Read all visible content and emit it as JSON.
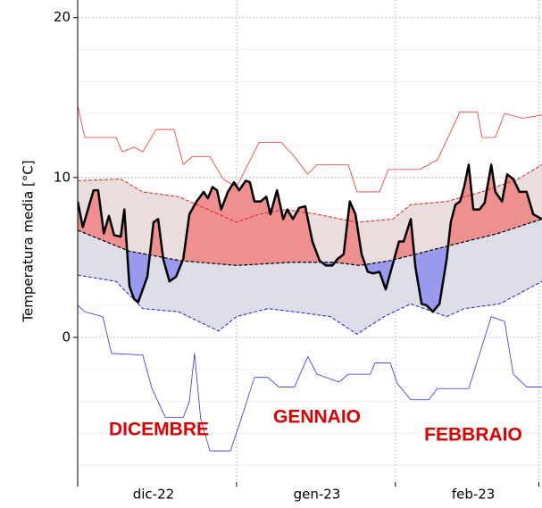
{
  "chart_data": {
    "type": "line",
    "ylabel": "Temperatura media [°C]",
    "xlim": [
      0,
      90.6
    ],
    "ylim": [
      -9.05,
      21.1
    ],
    "yticks": [
      0,
      10,
      20
    ],
    "yminorticks": [
      -8,
      -6,
      -4,
      -2,
      2,
      4,
      6,
      8,
      12,
      14,
      16,
      18
    ],
    "xticks": [
      {
        "value": 14.8,
        "label": "dic-22"
      },
      {
        "value": 46.7,
        "label": "gen-23"
      },
      {
        "value": 77.2,
        "label": "feb-23"
      }
    ],
    "xgrid": [
      0,
      31,
      62,
      90
    ],
    "annotations": [
      "DICEMBRE",
      "GENNAIO",
      "FEBBRAIO"
    ],
    "above_fill": "#ef8f8f",
    "below_fill": "#9999ee",
    "upper_band_fill": "#e9dddd",
    "lower_band_fill": "#dedee9",
    "series": [
      {
        "role": "observed",
        "color": "#000000",
        "style": "solid",
        "width": 2.5,
        "x": [
          0,
          1.0,
          3.1,
          4.0,
          5.1,
          6.1,
          7.1,
          8.4,
          9.1,
          10.1,
          11.0,
          11.8,
          13.6,
          14.8,
          15.7,
          16.7,
          17.9,
          19.2,
          20.6,
          21.8,
          23.2,
          24.6,
          25.4,
          26.3,
          27.2,
          28.0,
          29.3,
          30.5,
          31.5,
          32.8,
          33.6,
          34.5,
          35.7,
          36.8,
          37.6,
          38.9,
          40.1,
          40.9,
          42.0,
          43.2,
          44.4,
          45.8,
          47.2,
          48.4,
          49.7,
          50.7,
          51.9,
          53.1,
          54.2,
          55.4,
          56.6,
          57.7,
          58.9,
          60.1,
          61.5,
          62.7,
          63.6,
          65.0,
          65.9,
          67.1,
          68.1,
          69.3,
          70.6,
          72.0,
          72.8,
          73.7,
          74.6,
          75.4,
          76.3,
          77.2,
          78.4,
          79.4,
          80.7,
          81.5,
          82.8,
          83.8,
          85.0,
          86.2,
          87.6,
          88.9,
          90.6
        ],
        "values": [
          8.5,
          6.9,
          9.2,
          9.2,
          6.5,
          7.6,
          6.4,
          6.3,
          8.0,
          3.2,
          2.4,
          2.2,
          3.8,
          7.2,
          7.4,
          4.9,
          3.5,
          3.8,
          4.9,
          7.7,
          8.5,
          9.1,
          8.7,
          9.4,
          9.2,
          8.0,
          9.1,
          9.7,
          9.2,
          9.8,
          9.7,
          8.5,
          8.5,
          8.8,
          7.7,
          9.2,
          7.4,
          8.0,
          7.4,
          8.1,
          8.2,
          6.0,
          4.8,
          4.5,
          4.5,
          4.9,
          5.2,
          8.5,
          7.7,
          5.2,
          4.1,
          4.0,
          4.1,
          3.0,
          4.6,
          6.0,
          6.0,
          7.4,
          4.4,
          2.1,
          2.0,
          1.6,
          2.1,
          4.9,
          7.2,
          8.3,
          8.5,
          9.4,
          10.8,
          8.0,
          8.0,
          8.4,
          10.8,
          9.1,
          8.5,
          10.2,
          9.9,
          9.1,
          9.1,
          7.7,
          7.4
        ]
      },
      {
        "role": "median",
        "color": "#000000",
        "style": "dashed",
        "width": 1.2,
        "x": [
          0,
          10,
          20,
          31,
          42,
          50,
          55,
          61,
          72,
          82,
          90.6
        ],
        "values": [
          6.7,
          5.4,
          4.8,
          4.5,
          4.7,
          4.7,
          4.5,
          4.8,
          5.7,
          6.5,
          7.4
        ]
      },
      {
        "role": "upper",
        "color": "#e02020",
        "style": "dashed",
        "width": 1,
        "x": [
          0,
          8.4,
          12.7,
          19.7,
          27.5,
          31,
          35.4,
          40.6,
          46.7,
          54.5,
          61.5,
          65,
          72,
          78.9,
          85.9,
          90.6
        ],
        "values": [
          9.8,
          9.9,
          9.1,
          8.8,
          7.7,
          7.2,
          7.7,
          8.0,
          7.7,
          7.2,
          7.4,
          8.3,
          8.5,
          9.1,
          9.9,
          10.8
        ]
      },
      {
        "role": "lower",
        "color": "#2020e0",
        "style": "dashed",
        "width": 1,
        "x": [
          0,
          7.5,
          12.7,
          19.7,
          27.5,
          31,
          37.1,
          42.3,
          49.3,
          54.5,
          59.8,
          65,
          72,
          75.4,
          82.4,
          90.6
        ],
        "values": [
          3.9,
          3.5,
          1.8,
          1.6,
          0.4,
          1.3,
          1.8,
          1.6,
          1.3,
          0.2,
          1.3,
          2.1,
          1.3,
          1.8,
          2.1,
          3.5
        ]
      },
      {
        "role": "max",
        "color": "#ff3030",
        "style": "solid",
        "width": 0.8,
        "x": [
          0,
          1.4,
          3.1,
          7.5,
          8.7,
          11.0,
          12.7,
          15.3,
          18.8,
          20.6,
          22.3,
          25.8,
          28.4,
          31.0,
          35.4,
          39.7,
          42.3,
          44.9,
          46.7,
          52.8,
          54.5,
          58.9,
          60.6,
          66.7,
          70.2,
          74.6,
          78.0,
          78.9,
          81.5,
          83.3,
          86.8,
          90.6
        ],
        "values": [
          14.5,
          12.5,
          12.5,
          12.5,
          11.6,
          11.9,
          11.6,
          13.0,
          13.0,
          10.8,
          11.3,
          11.3,
          9.9,
          9.4,
          12.2,
          12.2,
          11.3,
          10.2,
          10.8,
          10.8,
          9.1,
          9.1,
          10.5,
          10.5,
          11.1,
          14.1,
          14.1,
          12.5,
          12.5,
          14.0,
          13.7,
          13.9
        ]
      },
      {
        "role": "min",
        "color": "#3030ff",
        "style": "solid",
        "width": 0.8,
        "x": [
          0,
          1.4,
          4.9,
          6.6,
          12.7,
          14.5,
          17.1,
          20.6,
          21.8,
          22.8,
          24.0,
          25.8,
          29.8,
          31.9,
          34.5,
          37.1,
          39.2,
          42.3,
          44.9,
          46.7,
          51.0,
          52.8,
          57.1,
          58.0,
          61.0,
          62.4,
          65.0,
          68.5,
          70.2,
          76.3,
          80.7,
          83.3,
          85.0,
          87.6,
          90.6
        ],
        "values": [
          2.0,
          1.6,
          1.3,
          -1.0,
          -1.1,
          -3.2,
          -5.0,
          -5.0,
          -4.0,
          -1.0,
          -5.1,
          -7.1,
          -7.1,
          -5.1,
          -2.5,
          -2.5,
          -3.1,
          -3.1,
          -1.2,
          -2.3,
          -2.8,
          -2.3,
          -2.3,
          -1.6,
          -1.6,
          -2.9,
          -3.9,
          -3.9,
          -3.2,
          -3.2,
          1.3,
          1.0,
          -2.3,
          -3.1,
          -3.1
        ]
      }
    ]
  }
}
